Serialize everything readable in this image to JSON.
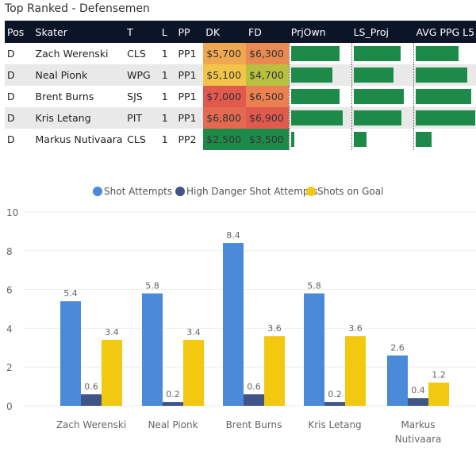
{
  "title": "Top Ranked - Defensemen",
  "table": {
    "headers": [
      "Pos",
      "Skater",
      "T",
      "L",
      "PP",
      "DK",
      "FD",
      "PrjOwn",
      "LS_Proj",
      "AVG PPG L5"
    ],
    "rows": [
      {
        "pos": "D",
        "skater": "Zach Werenski",
        "team": "CLS",
        "line": "1",
        "pp": "PP1",
        "dk": "$5,700",
        "fd": "$6,300",
        "dk_color": "#f0a850",
        "fd_color": "#ea8a50",
        "prjown": 0.8,
        "ls_proj": 0.78,
        "avg_ppg": 0.7
      },
      {
        "pos": "D",
        "skater": "Neal Pionk",
        "team": "WPG",
        "line": "1",
        "pp": "PP1",
        "dk": "$5,100",
        "fd": "$4,700",
        "dk_color": "#f2c44a",
        "fd_color": "#b8c040",
        "prjown": 0.69,
        "ls_proj": 0.67,
        "avg_ppg": 0.85
      },
      {
        "pos": "D",
        "skater": "Brent Burns",
        "team": "SJS",
        "line": "1",
        "pp": "PP1",
        "dk": "$7,000",
        "fd": "$6,500",
        "dk_color": "#e25a4e",
        "fd_color": "#ec8050",
        "prjown": 0.8,
        "ls_proj": 0.83,
        "avg_ppg": 0.92
      },
      {
        "pos": "D",
        "skater": "Kris Letang",
        "team": "PIT",
        "line": "1",
        "pp": "PP1",
        "dk": "$6,800",
        "fd": "$6,900",
        "dk_color": "#e36a50",
        "fd_color": "#e05a4e",
        "prjown": 0.86,
        "ls_proj": 0.79,
        "avg_ppg": 0.98
      },
      {
        "pos": "D",
        "skater": "Markus Nutivaara",
        "team": "CLS",
        "line": "1",
        "pp": "PP2",
        "dk": "$2,500",
        "fd": "$3,500",
        "dk_color": "#1e8a4a",
        "fd_color": "#1e8a4a",
        "prjown": 0.06,
        "ls_proj": 0.21,
        "avg_ppg": 0.26
      }
    ]
  },
  "colors": {
    "header_bg": "#0c1428",
    "bar": "#1e8a4a"
  },
  "chart_data": {
    "type": "bar",
    "categories": [
      "Zach Werenski",
      "Neal Pionk",
      "Brent Burns",
      "Kris Letang",
      "Markus Nutivaara"
    ],
    "series": [
      {
        "name": "Shot Attempts",
        "color": "#4a8ad8",
        "values": [
          5.4,
          5.8,
          8.4,
          5.8,
          2.6
        ],
        "labels": [
          "5.4",
          "5.8",
          "8.4",
          "5.8",
          "2.6"
        ]
      },
      {
        "name": "High Danger Shot Attempts",
        "color": "#3f5587",
        "values": [
          0.6,
          0.2,
          0.6,
          0.2,
          0.4
        ],
        "labels": [
          "0.6",
          "0.2",
          "0.6",
          "0.2",
          "0.4"
        ]
      },
      {
        "name": "Shots on Goal",
        "color": "#f2c811",
        "values": [
          3.4,
          3.4,
          3.6,
          3.6,
          1.2
        ],
        "labels": [
          "3.4",
          "3.4",
          "3.6",
          "3.6",
          "1.2"
        ]
      }
    ],
    "ylim": [
      0,
      10
    ],
    "yticks": [
      "0",
      "2",
      "4",
      "6",
      "8",
      "10"
    ],
    "legend": "top-center",
    "grid": true
  }
}
